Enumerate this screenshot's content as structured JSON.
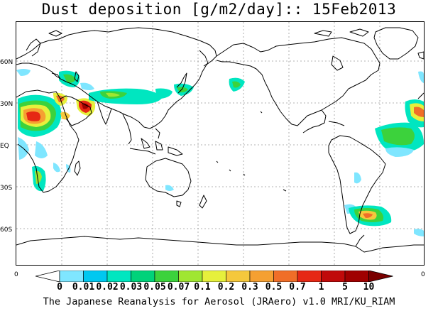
{
  "title": "Dust deposition [g/m2/day]:: 15Feb2013",
  "latitude_labels": [
    "60N",
    "30N",
    "EQ",
    "30S",
    "60S"
  ],
  "colorbar": {
    "edge_labels": [
      "0",
      "0"
    ],
    "tick_labels": [
      "0",
      "0.01",
      "0.02",
      "0.03",
      "0.05",
      "0.07",
      "0.1",
      "0.2",
      "0.3",
      "0.5",
      "0.7",
      "1",
      "5",
      "10"
    ],
    "colors": [
      "#ffffff",
      "#7fe6ff",
      "#00c8f0",
      "#00e6c0",
      "#00d27a",
      "#3cd23c",
      "#a0e632",
      "#e6f03c",
      "#f5c83c",
      "#f5a032",
      "#f06e28",
      "#e62814",
      "#c00a0a",
      "#a00000",
      "#7a0000"
    ]
  },
  "footer": "The Japanese Reanalysis for Aerosol (JRAero) v1.0 MRI/KU_RIAM"
}
